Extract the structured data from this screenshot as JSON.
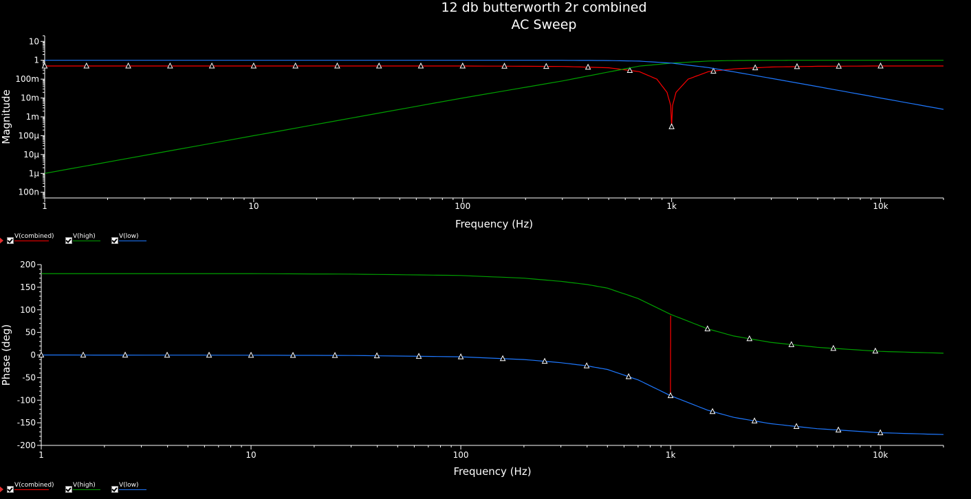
{
  "header": {
    "title": "12 db butterworth 2r combined",
    "subtitle": "AC Sweep"
  },
  "colors": {
    "combined": "#ff0000",
    "high": "#00a000",
    "low": "#1e78ff",
    "axis": "#ffffff",
    "background": "#000000"
  },
  "legend": {
    "items": [
      {
        "label": "V(combined)",
        "color": "#ff0000",
        "checked": true,
        "selected": true
      },
      {
        "label": "V(high)",
        "color": "#00a000",
        "checked": true,
        "selected": false
      },
      {
        "label": "V(low)",
        "color": "#1e78ff",
        "checked": true,
        "selected": false
      }
    ]
  },
  "chart_data": [
    {
      "type": "line",
      "xscale": "log",
      "yscale": "log",
      "xlabel": "Frequency (Hz)",
      "ylabel": "Magnitude",
      "xlim": [
        1,
        20000
      ],
      "ylim": [
        5e-08,
        20
      ],
      "xticks": [
        {
          "v": 1,
          "t": "1"
        },
        {
          "v": 10,
          "t": "10"
        },
        {
          "v": 100,
          "t": "100"
        },
        {
          "v": 1000,
          "t": "1k"
        },
        {
          "v": 10000,
          "t": "10k"
        }
      ],
      "yticks": [
        {
          "v": 1e-07,
          "t": "100n"
        },
        {
          "v": 1e-06,
          "t": "1µ"
        },
        {
          "v": 1e-05,
          "t": "10µ"
        },
        {
          "v": 0.0001,
          "t": "100µ"
        },
        {
          "v": 0.001,
          "t": "1m"
        },
        {
          "v": 0.01,
          "t": "10m"
        },
        {
          "v": 0.1,
          "t": "100m"
        },
        {
          "v": 1,
          "t": "1"
        },
        {
          "v": 10,
          "t": "10"
        }
      ],
      "series": [
        {
          "name": "V(combined)",
          "key": "combined",
          "markers": true,
          "x": [
            1,
            10,
            100,
            300,
            500,
            700,
            850,
            950,
            990,
            1000,
            1010,
            1050,
            1200,
            1500,
            2000,
            3000,
            5000,
            10000,
            20000
          ],
          "y": [
            0.5,
            0.5,
            0.499,
            0.47,
            0.4,
            0.25,
            0.1,
            0.02,
            0.004,
            0.0003,
            0.004,
            0.02,
            0.1,
            0.25,
            0.35,
            0.44,
            0.48,
            0.499,
            0.5
          ]
        },
        {
          "name": "V(high)",
          "key": "high",
          "markers": false,
          "x": [
            1,
            10,
            100,
            300,
            500,
            700,
            1000,
            1500,
            2000,
            3000,
            5000,
            10000,
            20000
          ],
          "y": [
            1e-06,
            0.0001,
            0.01,
            0.08,
            0.24,
            0.49,
            0.707,
            0.91,
            0.97,
            0.994,
            0.999,
            1,
            1
          ]
        },
        {
          "name": "V(low)",
          "key": "low",
          "markers": false,
          "x": [
            1,
            10,
            100,
            300,
            500,
            700,
            1000,
            1500,
            2000,
            3000,
            5000,
            10000,
            20000
          ],
          "y": [
            1,
            1,
            1,
            0.996,
            0.97,
            0.9,
            0.707,
            0.41,
            0.24,
            0.11,
            0.04,
            0.01,
            0.0025
          ]
        }
      ]
    },
    {
      "type": "line",
      "xscale": "log",
      "yscale": "linear",
      "xlabel": "Frequency (Hz)",
      "ylabel": "Phase (deg)",
      "xlim": [
        1,
        20000
      ],
      "ylim": [
        -200,
        200
      ],
      "xticks": [
        {
          "v": 1,
          "t": "1"
        },
        {
          "v": 10,
          "t": "10"
        },
        {
          "v": 100,
          "t": "100"
        },
        {
          "v": 1000,
          "t": "1k"
        },
        {
          "v": 10000,
          "t": "10k"
        }
      ],
      "yticks": [
        {
          "v": -200,
          "t": "-200"
        },
        {
          "v": -150,
          "t": "-150"
        },
        {
          "v": -100,
          "t": "-100"
        },
        {
          "v": -50,
          "t": "-50"
        },
        {
          "v": 0,
          "t": "0"
        },
        {
          "v": 50,
          "t": "50"
        },
        {
          "v": 100,
          "t": "100"
        },
        {
          "v": 150,
          "t": "150"
        },
        {
          "v": 200,
          "t": "200"
        }
      ],
      "series": [
        {
          "name": "V(combined)",
          "key": "combined",
          "markers": false,
          "x": [
            999,
            1000,
            1001
          ],
          "y": [
            -85,
            0,
            87
          ]
        },
        {
          "name": "V(high)",
          "key": "high",
          "markers": true,
          "x": [
            1,
            10,
            30,
            100,
            200,
            300,
            400,
            500,
            700,
            1000,
            1500,
            2000,
            3000,
            5000,
            10000,
            20000
          ],
          "y": [
            180,
            180,
            179,
            176,
            170,
            163,
            156,
            148,
            125,
            90,
            58,
            42,
            28,
            17,
            8,
            4
          ]
        },
        {
          "name": "V(low)",
          "key": "low",
          "markers": true,
          "x": [
            1,
            10,
            30,
            100,
            200,
            300,
            400,
            500,
            700,
            1000,
            1500,
            2000,
            3000,
            5000,
            10000,
            20000
          ],
          "y": [
            0,
            -0.5,
            -1,
            -4,
            -10,
            -17,
            -24,
            -32,
            -55,
            -90,
            -122,
            -138,
            -152,
            -163,
            -172,
            -176
          ]
        }
      ]
    }
  ]
}
